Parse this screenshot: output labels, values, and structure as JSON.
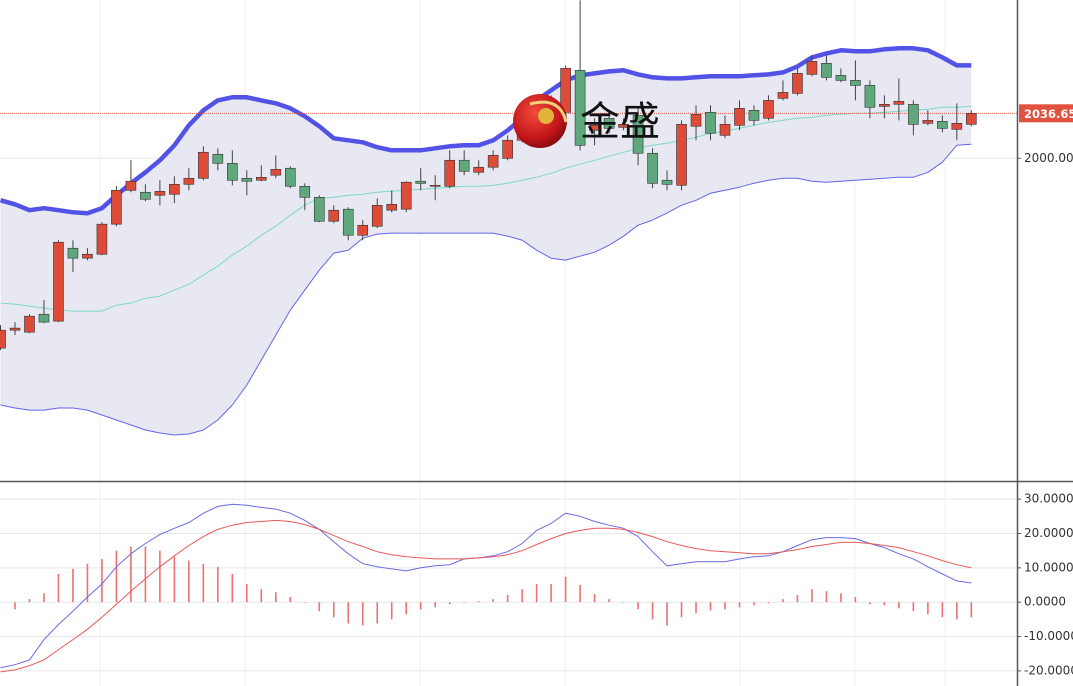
{
  "chart_data": [
    {
      "type": "candlestick",
      "open": [
        1845.3,
        1859.9,
        1858.3,
        1872.9,
        1867.3,
        1926.7,
        1918.6,
        1921.8,
        1946.3,
        1973.9,
        1972.3,
        1969.9,
        1970.7,
        1978.8,
        1983.7,
        2003.3,
        1995.9,
        1983.7,
        1982.1,
        1986.2,
        1991.9,
        1977.2,
        1968.2,
        1948.7,
        1958.5,
        1937.3,
        1944.6,
        1957.7,
        1958.5,
        1981.3,
        1977.2,
        1977.2,
        1998.4,
        1988.6,
        1992.7,
        2000.0,
        2014.7,
        2026.9,
        2037.5,
        2037.5,
        2071.7,
        2022.8,
        2032.6,
        2025.2,
        2035.0,
        2004.1,
        1982.1,
        1978.0,
        2026.1,
        2037.5,
        2018.7,
        2026.9,
        2039.1,
        2032.6,
        2048.9,
        2052.9,
        2068.4,
        2077.4,
        2067.6,
        2063.5,
        2059.4,
        2042.3,
        2044.0,
        2044.0,
        2028.5,
        2030.1,
        2023.6,
        2027.7
      ],
      "high": [
        1864.0,
        1866.5,
        1872.9,
        1884.4,
        1933.2,
        1933.2,
        1926.7,
        1947.9,
        1977.2,
        1998.4,
        1978.8,
        1982.1,
        1985.3,
        1991.9,
        2009.8,
        2008.1,
        2006.5,
        1990.2,
        1994.3,
        2002.4,
        1993.5,
        1979.6,
        1969.9,
        1961.7,
        1960.1,
        1949.5,
        1967.4,
        1973.9,
        1981.3,
        1991.9,
        1986.2,
        2006.5,
        2006.5,
        1998.4,
        2006.5,
        2018.7,
        2032.6,
        2048.9,
        2051.3,
        2075.7,
        2128.7,
        2032.6,
        2039.1,
        2032.6,
        2040.7,
        2008.1,
        1990.2,
        2030.9,
        2043.2,
        2043.2,
        2035.0,
        2047.2,
        2043.2,
        2051.3,
        2063.5,
        2073.3,
        2083.9,
        2083.9,
        2073.3,
        2079.8,
        2063.5,
        2051.3,
        2065.1,
        2047.2,
        2039.1,
        2035.0,
        2044.8,
        2039.1
      ],
      "low": [
        1843.7,
        1855.9,
        1857.5,
        1865.6,
        1866.5,
        1907.2,
        1916.9,
        1921.0,
        1944.6,
        1972.3,
        1965.0,
        1961.7,
        1963.4,
        1973.9,
        1982.1,
        1990.2,
        1978.0,
        1969.9,
        1981.3,
        1983.7,
        1975.6,
        1957.7,
        1947.9,
        1947.1,
        1933.2,
        1933.2,
        1943.0,
        1956.0,
        1956.0,
        1973.9,
        1965.8,
        1975.6,
        1986.2,
        1986.2,
        1990.2,
        1998.4,
        2013.0,
        2025.2,
        2032.6,
        2035.0,
        2006.5,
        2010.6,
        2020.4,
        2022.8,
        1994.3,
        1975.6,
        1973.9,
        1973.9,
        2014.7,
        2014.7,
        2016.3,
        2022.8,
        2026.9,
        2030.9,
        2047.2,
        2051.3,
        2066.8,
        2063.5,
        2061.9,
        2047.2,
        2032.6,
        2032.6,
        2030.9,
        2018.7,
        2026.9,
        2021.2,
        2014.7,
        2026.1
      ],
      "close": [
        1859.9,
        1861.6,
        1871.3,
        1866.5,
        1931.6,
        1918.6,
        1921.8,
        1946.3,
        1973.9,
        1981.3,
        1966.6,
        1973.1,
        1978.8,
        1983.7,
        2004.9,
        1995.9,
        1982.1,
        1981.3,
        1984.5,
        1991.0,
        1977.2,
        1968.2,
        1948.7,
        1957.7,
        1937.3,
        1945.4,
        1961.7,
        1962.5,
        1980.5,
        1979.6,
        1978.0,
        1998.4,
        1989.4,
        1992.7,
        2002.4,
        2014.7,
        2026.9,
        2043.2,
        2047.2,
        2073.3,
        2010.6,
        2026.9,
        2024.4,
        2027.7,
        2004.1,
        1979.6,
        1978.8,
        2027.7,
        2035.8,
        2020.4,
        2027.7,
        2040.7,
        2030.9,
        2047.2,
        2053.7,
        2069.2,
        2079.0,
        2066.0,
        2063.5,
        2059.4,
        2041.5,
        2044.0,
        2046.4,
        2027.7,
        2030.9,
        2024.4,
        2028.5,
        2036.65
      ],
      "up_color": "#dd4b39",
      "down_color": "#5fa77c",
      "series": [
        {
          "color": "#5252e6",
          "values": [
            1965.8,
            1962.5,
            1957.7,
            1959.3,
            1957.7,
            1956.0,
            1955.2,
            1959.3,
            1969.9,
            1979.6,
            1988.6,
            1998.4,
            2010.6,
            2026.9,
            2039.1,
            2047.2,
            2049.7,
            2049.7,
            2047.2,
            2044.8,
            2040.7,
            2034.2,
            2026.1,
            2016.3,
            2014.7,
            2013.0,
            2009.0,
            2006.5,
            2006.5,
            2006.5,
            2008.1,
            2009.8,
            2010.6,
            2010.6,
            2014.7,
            2022.8,
            2032.6,
            2047.2,
            2055.4,
            2063.5,
            2067.6,
            2069.2,
            2070.8,
            2071.7,
            2068.4,
            2066.0,
            2065.1,
            2065.1,
            2066.0,
            2066.8,
            2066.8,
            2066.8,
            2067.6,
            2068.4,
            2070.0,
            2074.9,
            2082.2,
            2085.5,
            2088.0,
            2087.2,
            2087.2,
            2088.8,
            2089.6,
            2089.6,
            2088.0,
            2082.2,
            2075.7,
            2075.7
          ]
        },
        {
          "color": "#7fd8c2",
          "values": [
            1882.0,
            1881.2,
            1879.5,
            1877.9,
            1876.3,
            1875.5,
            1875.5,
            1875.5,
            1880.3,
            1882.0,
            1886.0,
            1887.7,
            1892.6,
            1897.4,
            1904.8,
            1912.1,
            1921.1,
            1928.4,
            1937.3,
            1944.7,
            1953.6,
            1961.8,
            1967.5,
            1968.3,
            1969.9,
            1970.7,
            1972.4,
            1973.2,
            1974.0,
            1974.8,
            1975.6,
            1976.4,
            1977.2,
            1977.2,
            1978.1,
            1979.7,
            1982.1,
            1984.6,
            1987.8,
            1991.9,
            1995.2,
            1998.4,
            2001.7,
            2004.9,
            2008.2,
            2010.6,
            2012.3,
            2014.7,
            2017.1,
            2020.4,
            2022.0,
            2024.5,
            2026.9,
            2029.4,
            2031.0,
            2032.6,
            2033.4,
            2035.1,
            2035.9,
            2036.7,
            2036.7,
            2037.5,
            2038.3,
            2039.1,
            2039.9,
            2041.6,
            2041.6,
            2042.4
          ]
        },
        {
          "color": "#6464ea",
          "values": [
            1798.9,
            1796.5,
            1794.8,
            1794.8,
            1796.5,
            1796.5,
            1794.8,
            1790.8,
            1786.7,
            1782.6,
            1778.6,
            1776.1,
            1774.5,
            1775.3,
            1778.6,
            1786.7,
            1798.9,
            1815.2,
            1835.6,
            1855.9,
            1876.3,
            1892.6,
            1908.8,
            1922.7,
            1925.1,
            1934.9,
            1938.2,
            1939.0,
            1939.0,
            1939.0,
            1939.0,
            1939.0,
            1939.0,
            1939.0,
            1939.0,
            1936.5,
            1933.3,
            1925.1,
            1918.6,
            1917.0,
            1920.2,
            1923.5,
            1929.2,
            1936.5,
            1945.5,
            1949.6,
            1955.3,
            1961.8,
            1965.8,
            1971.5,
            1974.0,
            1976.4,
            1979.7,
            1982.1,
            1983.8,
            1983.8,
            1981.3,
            1980.5,
            1981.3,
            1982.1,
            1982.9,
            1983.8,
            1984.6,
            1984.6,
            1988.6,
            1996.8,
            2010.6,
            2011.4
          ]
        }
      ],
      "band_fill": "#e4e4f1",
      "ylim": [
        1737,
        2129
      ],
      "yticks": [
        {
          "value": 2000,
          "label": "2000.00"
        }
      ],
      "last_price": 2036.65,
      "last_price_color": "#e0523f",
      "watermark": "金盛"
    },
    {
      "type": "macd",
      "series": [
        {
          "color": "#6b6be2",
          "values": [
            -19.1,
            -18.2,
            -16.8,
            -10.9,
            -6.5,
            -2.6,
            1.5,
            5.3,
            10.3,
            14.1,
            17.1,
            19.7,
            21.5,
            23.2,
            25.9,
            27.9,
            28.5,
            28.2,
            27.6,
            27.1,
            25.9,
            23.8,
            21.2,
            17.6,
            14.1,
            11.2,
            10.3,
            9.7,
            9.1,
            10.0,
            10.6,
            10.9,
            12.6,
            12.9,
            13.5,
            14.7,
            17.1,
            20.9,
            22.9,
            25.9,
            25.0,
            23.5,
            22.4,
            21.5,
            19.1,
            14.7,
            10.6,
            11.2,
            11.8,
            11.8,
            11.8,
            12.6,
            13.2,
            13.5,
            14.7,
            16.5,
            18.2,
            18.8,
            18.8,
            18.5,
            17.1,
            15.9,
            14.1,
            12.6,
            10.3,
            8.2,
            6.2,
            5.6
          ]
        },
        {
          "color": "#e65a5a",
          "values": [
            -20.3,
            -19.7,
            -18.5,
            -16.8,
            -13.8,
            -10.9,
            -7.9,
            -4.4,
            -0.6,
            3.2,
            6.8,
            10.3,
            13.5,
            16.5,
            19.1,
            21.2,
            22.4,
            23.2,
            23.5,
            23.8,
            23.5,
            22.6,
            21.2,
            19.4,
            17.6,
            16.2,
            14.7,
            13.8,
            13.2,
            12.9,
            12.6,
            12.6,
            12.6,
            12.9,
            13.2,
            13.8,
            15.0,
            16.8,
            18.5,
            20.0,
            20.9,
            21.5,
            21.5,
            21.2,
            20.3,
            19.1,
            17.6,
            16.5,
            15.6,
            15.0,
            14.7,
            14.4,
            14.1,
            14.1,
            14.7,
            15.3,
            16.2,
            16.8,
            17.4,
            17.4,
            17.1,
            16.5,
            15.9,
            14.7,
            13.5,
            12.1,
            10.9,
            10.0
          ]
        }
      ],
      "histogram": {
        "color": "#ee7070",
        "values": [
          null,
          -2.1,
          0.9,
          2.6,
          8.2,
          9.7,
          11.2,
          12.6,
          15.0,
          16.2,
          16.2,
          15.0,
          13.2,
          12.1,
          11.2,
          10.3,
          8.2,
          5.3,
          3.8,
          2.9,
          1.5,
          0,
          -2.6,
          -4.4,
          -6.2,
          -6.8,
          -6.2,
          -5.0,
          -3.5,
          -2.1,
          -1.5,
          -0.6,
          0,
          0.3,
          0.9,
          2.1,
          3.8,
          5.3,
          5.3,
          7.4,
          5.0,
          2.4,
          0.9,
          0,
          -2.1,
          -5.0,
          -6.8,
          -4.4,
          -3.2,
          -2.4,
          -2.1,
          -1.5,
          -0.9,
          -0.3,
          0.9,
          2.1,
          3.8,
          3.2,
          2.6,
          1.5,
          -0.6,
          -0.9,
          -1.8,
          -2.6,
          -3.5,
          -4.4,
          -5.0,
          -4.4
        ]
      },
      "ylim": [
        -24.4,
        34.7
      ],
      "yticks": [
        {
          "value": 30,
          "label": "30.0000"
        },
        {
          "value": 20,
          "label": "20.0000"
        },
        {
          "value": 10,
          "label": "10.0000"
        },
        {
          "value": 0,
          "label": "0.0000"
        },
        {
          "value": -10,
          "label": "-10.0000"
        },
        {
          "value": -20,
          "label": "-20.0000"
        }
      ],
      "grid": true
    }
  ]
}
